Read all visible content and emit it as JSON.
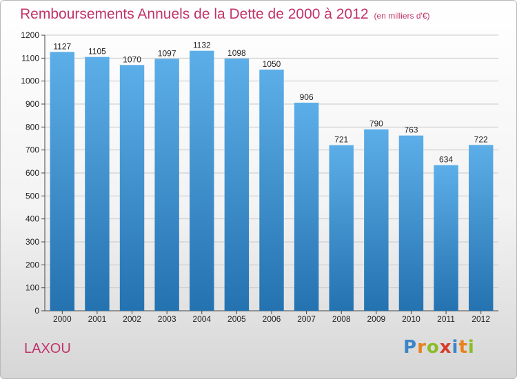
{
  "header": {
    "title": "Remboursements Annuels de la Dette de 2000 à 2012",
    "unit": "(en milliers d'€)"
  },
  "footer": {
    "city": "LAXOU",
    "logo_letters": [
      "P",
      "r",
      "o",
      "x",
      "i",
      "t",
      "i"
    ],
    "logo_colors": [
      "#3a86c8",
      "#e8811e",
      "#8cbc2a",
      "#d63c2a",
      "#3a86c8",
      "#e8811e",
      "#8cbc2a"
    ]
  },
  "colors": {
    "bar_light": "#5caee8",
    "bar_dark": "#2472b0",
    "grid": "#c8c8c8",
    "title": "#c0336a"
  },
  "chart_data": {
    "type": "bar",
    "title": "Remboursements Annuels de la Dette de 2000 à 2012",
    "subtitle": "(en milliers d'€)",
    "xlabel": "",
    "ylabel": "",
    "categories": [
      "2000",
      "2001",
      "2002",
      "2003",
      "2004",
      "2005",
      "2006",
      "2007",
      "2008",
      "2009",
      "2010",
      "2011",
      "2012"
    ],
    "values": [
      1127,
      1105,
      1070,
      1097,
      1132,
      1098,
      1050,
      906,
      721,
      790,
      763,
      634,
      722
    ],
    "ylim": [
      0,
      1200
    ],
    "yticks": [
      0,
      100,
      200,
      300,
      400,
      500,
      600,
      700,
      800,
      900,
      1000,
      1100,
      1200
    ],
    "grid": true,
    "legend": "none"
  }
}
